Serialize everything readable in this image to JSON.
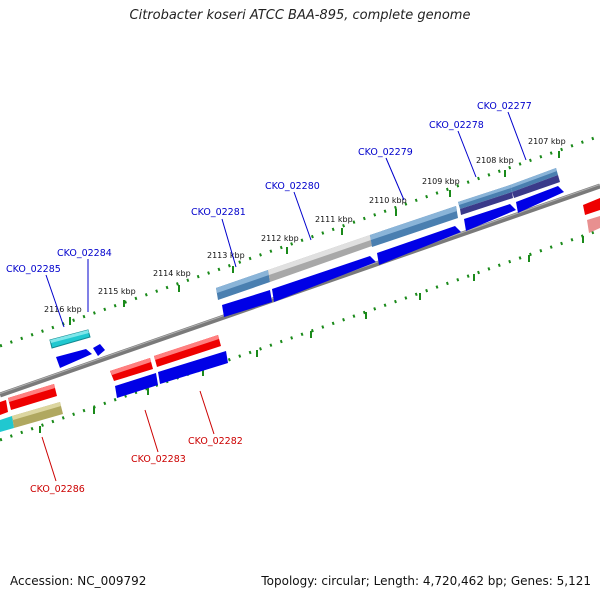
{
  "title": "Citrobacter koseri ATCC BAA-895, complete genome",
  "footer": {
    "accession": "Accession: NC_009792",
    "info": "Topology: circular; Length: 4,720,462 bp; Genes: 5,121"
  },
  "colors": {
    "background": "#ffffff",
    "backbone": "#808080",
    "tick": "#1a8a1a",
    "label_blue": "#0000cc",
    "label_red": "#cc0000",
    "cds_blue": "#0000e6",
    "cds_red": "#ee0000",
    "cds_cyan": "#20c8d0",
    "cds_steelblue": "#4a7fb0",
    "cds_gray": "#a0a0a0",
    "cds_navy": "#3a3a8a",
    "cds_khaki": "#b0a860",
    "cds_pink": "#e89090"
  },
  "scale_labels": [
    "2116 kbp",
    "2115 kbp",
    "2114 kbp",
    "2113 kbp",
    "2112 kbp",
    "2111 kbp",
    "2110 kbp",
    "2109 kbp",
    "2108 kbp",
    "2107 kbp"
  ],
  "gene_labels": [
    "CKO_02285",
    "CKO_02284",
    "CKO_02281",
    "CKO_02280",
    "CKO_02279",
    "CKO_02278",
    "CKO_02277",
    "CKO_02283",
    "CKO_02282",
    "CKO_02286"
  ]
}
